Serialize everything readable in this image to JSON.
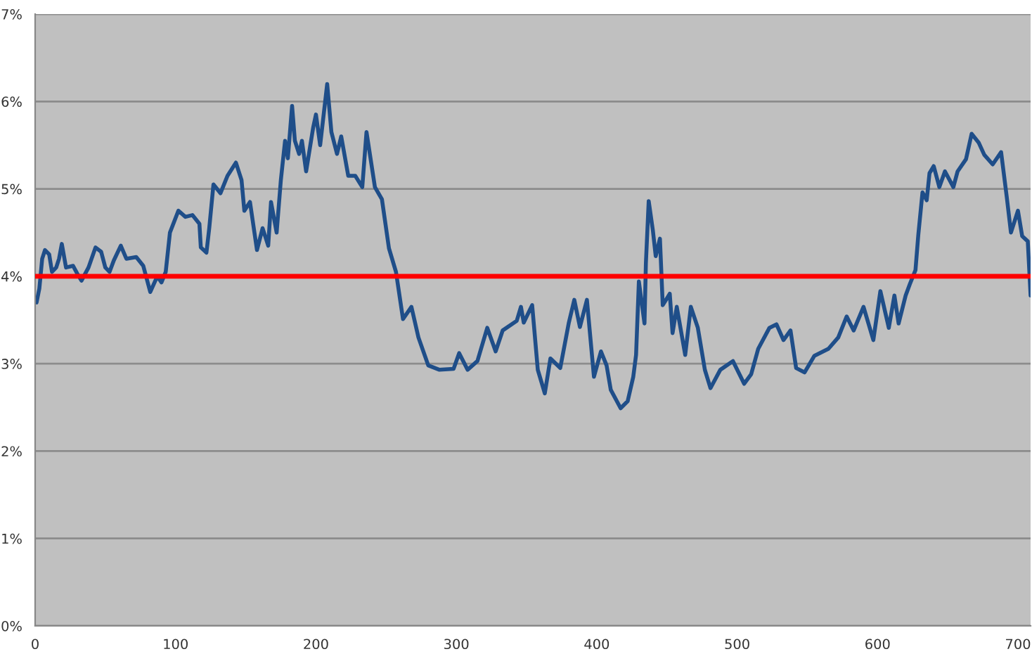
{
  "chart_data": {
    "type": "line",
    "x": [
      1,
      3,
      5,
      7,
      10,
      12,
      15,
      17,
      19,
      22,
      27,
      30,
      33,
      38,
      43,
      47,
      50,
      53,
      56,
      61,
      65,
      72,
      77,
      82,
      87,
      90,
      93,
      96,
      102,
      107,
      112,
      117,
      118,
      122,
      124,
      127,
      132,
      137,
      143,
      147,
      149,
      153,
      158,
      162,
      166,
      168,
      172,
      175,
      178,
      180,
      183,
      185,
      188,
      190,
      193,
      198,
      200,
      203,
      208,
      211,
      215,
      218,
      223,
      228,
      233,
      236,
      242,
      247,
      252,
      257,
      262,
      268,
      273,
      280,
      288,
      298,
      302,
      308,
      315,
      322,
      328,
      333,
      343,
      346,
      348,
      354,
      358,
      363,
      367,
      374,
      380,
      384,
      388,
      393,
      398,
      403,
      407,
      410,
      417,
      422,
      426,
      428,
      430,
      434,
      435,
      437,
      440,
      442,
      445,
      447,
      452,
      454,
      457,
      463,
      467,
      472,
      477,
      481,
      488,
      497,
      505,
      510,
      515,
      523,
      528,
      533,
      538,
      542,
      548,
      555,
      565,
      572,
      578,
      583,
      590,
      597,
      602,
      608,
      612,
      615,
      620,
      623,
      627,
      629,
      632,
      635,
      637,
      640,
      644,
      648,
      654,
      657,
      663,
      667,
      672,
      676,
      682,
      688,
      692,
      695,
      700,
      703,
      707,
      709
    ],
    "series": [
      {
        "color": "#1f4e89",
        "values": [
          3.7,
          3.86,
          4.2,
          4.3,
          4.25,
          4.05,
          4.1,
          4.2,
          4.37,
          4.1,
          4.12,
          4.03,
          3.95,
          4.1,
          4.33,
          4.28,
          4.1,
          4.05,
          4.18,
          4.35,
          4.2,
          4.22,
          4.12,
          3.82,
          4.0,
          3.93,
          4.05,
          4.5,
          4.75,
          4.68,
          4.7,
          4.6,
          4.33,
          4.27,
          4.55,
          5.05,
          4.95,
          5.15,
          5.3,
          5.1,
          4.75,
          4.85,
          4.3,
          4.55,
          4.35,
          4.85,
          4.5,
          5.1,
          5.55,
          5.35,
          5.95,
          5.55,
          5.4,
          5.55,
          5.2,
          5.7,
          5.85,
          5.5,
          6.2,
          5.65,
          5.4,
          5.6,
          5.15,
          5.15,
          5.02,
          5.65,
          5.02,
          4.88,
          4.32,
          4.05,
          3.51,
          3.65,
          3.3,
          2.98,
          2.93,
          2.94,
          3.12,
          2.93,
          3.03,
          3.41,
          3.14,
          3.38,
          3.49,
          3.65,
          3.47,
          3.67,
          2.93,
          2.66,
          3.06,
          2.95,
          3.46,
          3.73,
          3.42,
          3.73,
          2.85,
          3.14,
          2.98,
          2.7,
          2.49,
          2.57,
          2.85,
          3.1,
          3.94,
          3.46,
          4.15,
          4.86,
          4.52,
          4.23,
          4.43,
          3.67,
          3.8,
          3.35,
          3.65,
          3.1,
          3.65,
          3.41,
          2.93,
          2.72,
          2.93,
          3.03,
          2.77,
          2.88,
          3.17,
          3.41,
          3.45,
          3.27,
          3.38,
          2.95,
          2.9,
          3.09,
          3.17,
          3.3,
          3.54,
          3.38,
          3.65,
          3.27,
          3.83,
          3.41,
          3.78,
          3.46,
          3.78,
          3.91,
          4.07,
          4.47,
          4.96,
          4.87,
          5.18,
          5.26,
          5.02,
          5.2,
          5.02,
          5.2,
          5.34,
          5.63,
          5.53,
          5.39,
          5.28,
          5.42,
          4.91,
          4.5,
          4.75,
          4.46,
          4.4,
          3.78
        ]
      }
    ],
    "xlim": [
      0,
      709
    ],
    "xticks": [
      0,
      100,
      200,
      300,
      400,
      500,
      600,
      700
    ],
    "ylim": [
      0,
      7
    ],
    "yticks": [
      {
        "value": 0,
        "label": "0%"
      },
      {
        "value": 1,
        "label": "1%"
      },
      {
        "value": 2,
        "label": "2%"
      },
      {
        "value": 3,
        "label": "3%"
      },
      {
        "value": 4,
        "label": "4%"
      },
      {
        "value": 5,
        "label": "5%"
      },
      {
        "value": 6,
        "label": "6%"
      },
      {
        "value": 7,
        "label": "7%"
      }
    ],
    "ref_lines": [
      {
        "axis": "y",
        "value": 4,
        "color": "#ff0000"
      }
    ],
    "grid": "y",
    "legend": false,
    "marker": "none",
    "line_style": "solid"
  }
}
